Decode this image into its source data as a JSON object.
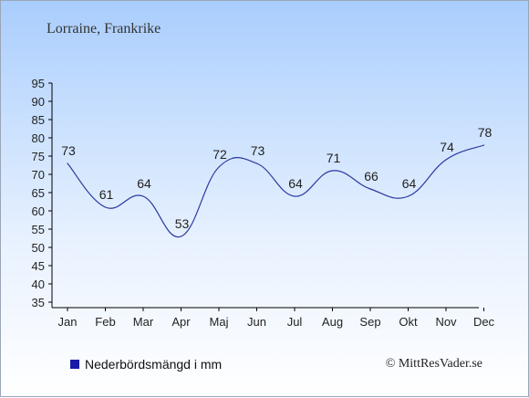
{
  "title": "Lorraine, Frankrike",
  "credit": "© MittResVader.se",
  "colors": {
    "line": "#2a3a9e",
    "legend_swatch": "#1a1aa8",
    "axis": "#000000"
  },
  "chart_data": {
    "type": "line",
    "title": "Lorraine, Frankrike",
    "xlabel": "",
    "ylabel": "",
    "categories": [
      "Jan",
      "Feb",
      "Mar",
      "Apr",
      "Maj",
      "Jun",
      "Jul",
      "Aug",
      "Sep",
      "Okt",
      "Nov",
      "Dec"
    ],
    "series": [
      {
        "name": "Nederbördsmängd i mm",
        "values": [
          73,
          61,
          64,
          53,
          72,
          73,
          64,
          71,
          66,
          64,
          74,
          78
        ]
      }
    ],
    "ylim": [
      35,
      95
    ],
    "yticks": [
      35,
      40,
      45,
      50,
      55,
      60,
      65,
      70,
      75,
      80,
      85,
      90,
      95
    ],
    "grid": false,
    "data_labels": true,
    "legend_position": "bottom-left"
  }
}
